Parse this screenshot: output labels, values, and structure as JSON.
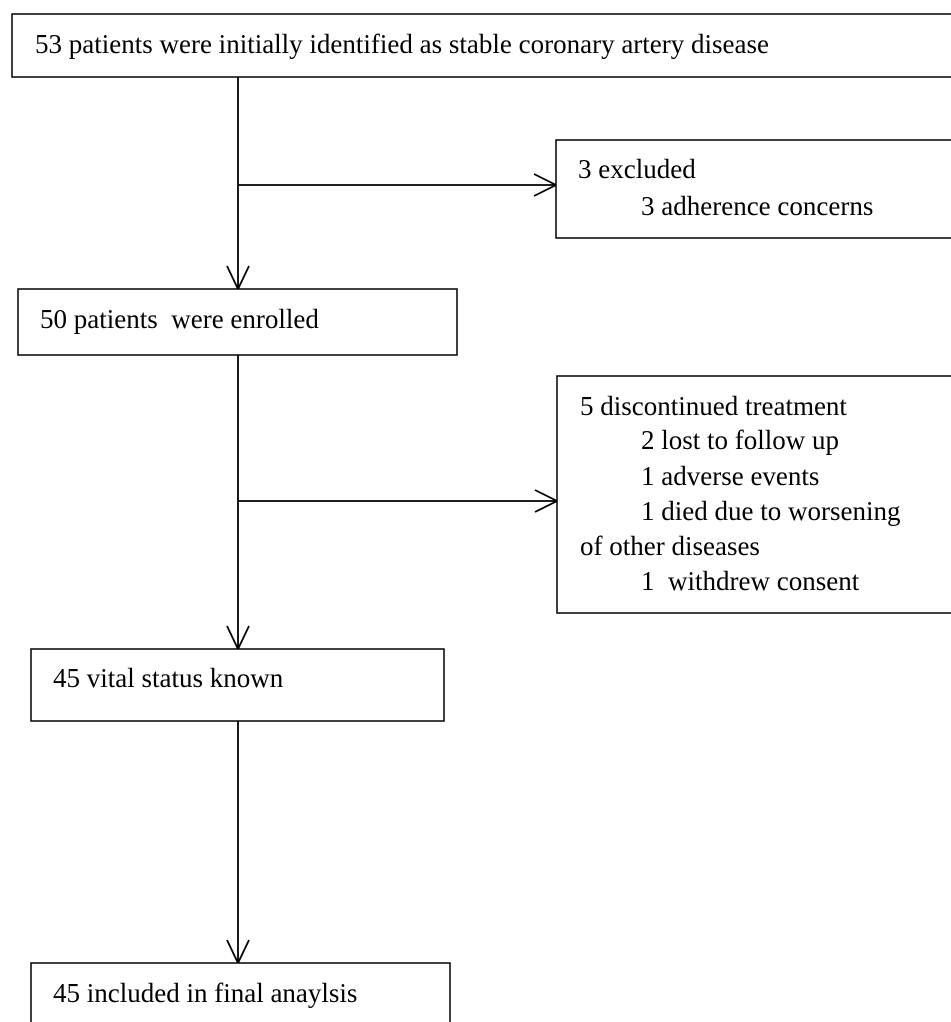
{
  "nodes": [
    {
      "label": "53 patients were initially identified as stable coronary artery disease"
    },
    {
      "lines": [
        "3 excluded",
        "3 adherence concerns"
      ]
    },
    {
      "label": "50 patients  were enrolled"
    },
    {
      "lines": [
        "5 discontinued treatment",
        "2 lost to follow up",
        "1 adverse events",
        "1 died due to worsening",
        "of other diseases",
        "1  withdrew consent"
      ]
    },
    {
      "label": "45 vital status known"
    },
    {
      "label": "45 included in final anaylsis"
    }
  ]
}
